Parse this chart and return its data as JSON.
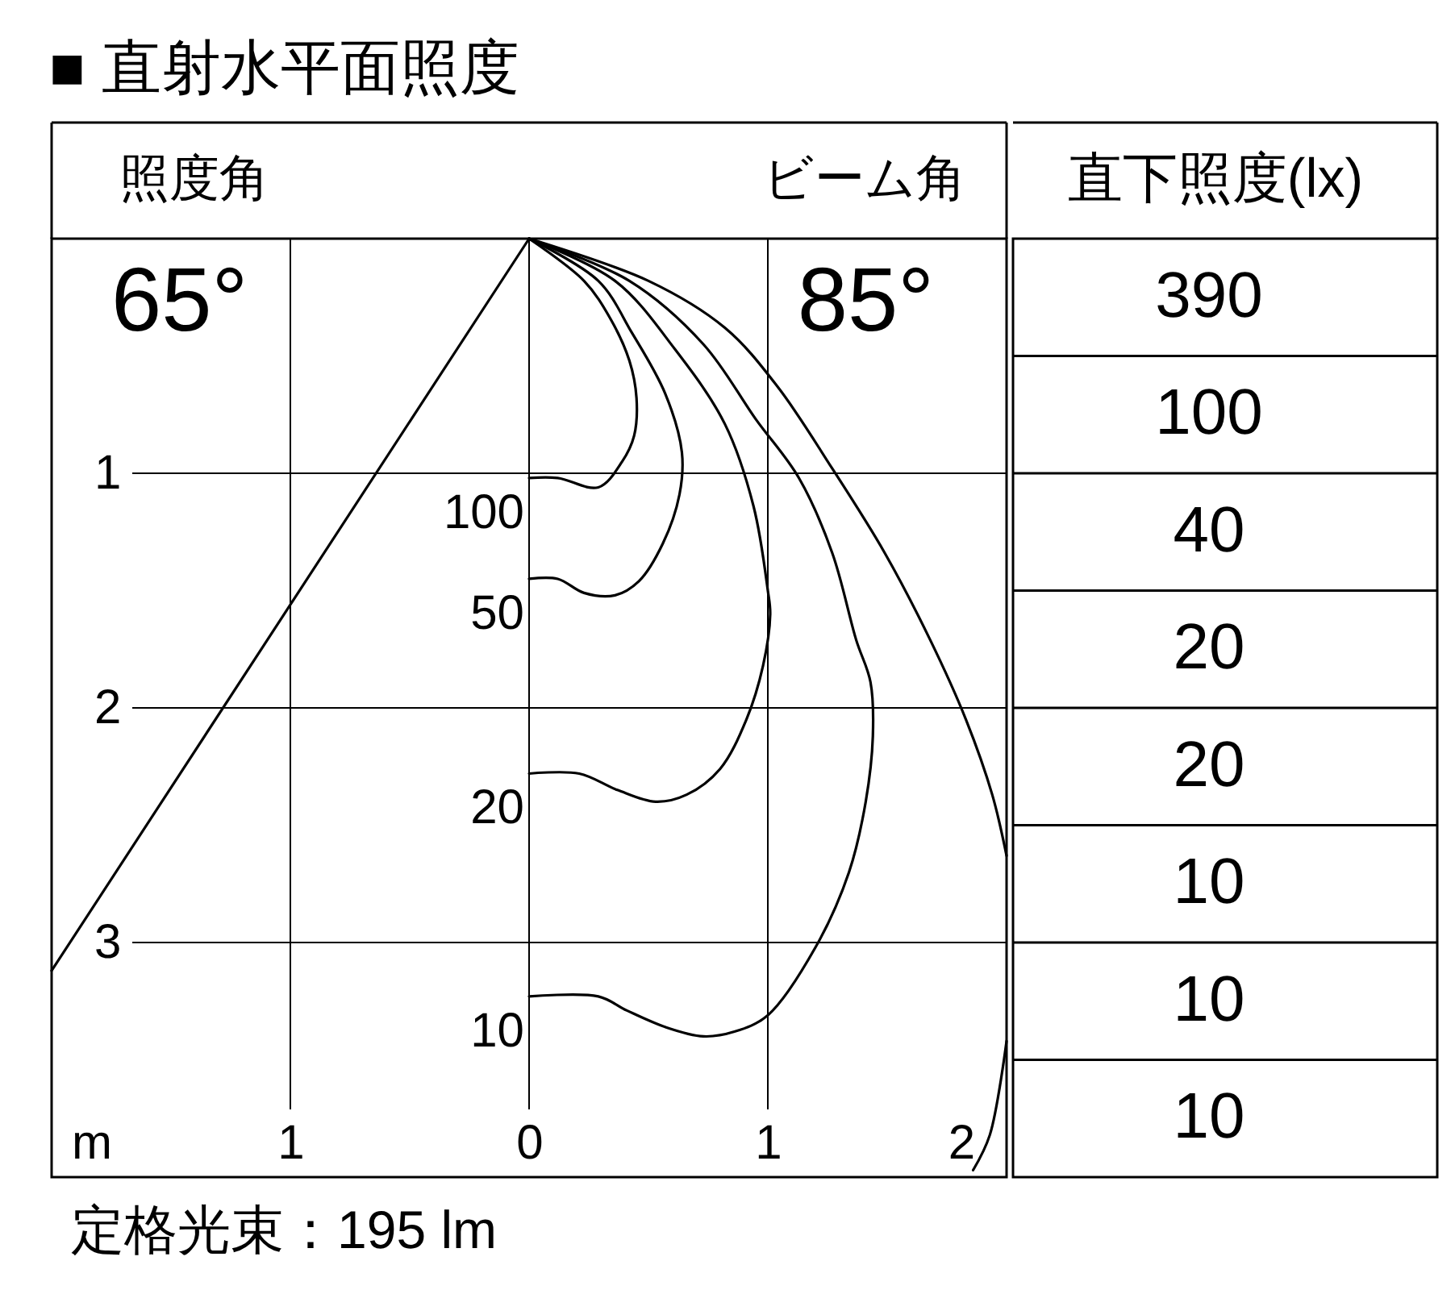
{
  "chart_data": [
    {
      "type": "line",
      "title": "■ 直射水平面照度",
      "xlabel": "m",
      "xlim": [
        -2,
        2
      ],
      "ylim": [
        4,
        0
      ],
      "xticks": [
        {
          "value": -1,
          "label": "1"
        },
        0,
        1,
        2
      ],
      "yticks": [
        1,
        2,
        3
      ],
      "grid": true,
      "line_style": "solid",
      "annotations": [
        "照度角",
        "65°",
        "ビーム角",
        "85°",
        "定格光束：195 lm"
      ],
      "series": [
        {
          "color": "#000000",
          "x": [
            0,
            -2.0
          ],
          "values": [
            0,
            3.12
          ]
        },
        {
          "name": "100",
          "color": "#000000",
          "x": [
            0,
            0.23,
            0.34,
            0.42,
            0.45,
            0.44,
            0.39,
            0.29,
            0.12,
            0
          ],
          "values": [
            0,
            0.18,
            0.34,
            0.52,
            0.68,
            0.84,
            0.95,
            1.06,
            1.02,
            1.02
          ]
        },
        {
          "name": "50",
          "color": "#000000",
          "x": [
            0,
            0.29,
            0.43,
            0.57,
            0.64,
            0.63,
            0.56,
            0.46,
            0.36,
            0.23,
            0.12,
            0
          ],
          "values": [
            0,
            0.18,
            0.4,
            0.66,
            0.91,
            1.09,
            1.3,
            1.46,
            1.52,
            1.51,
            1.45,
            1.45
          ]
        },
        {
          "name": "20",
          "color": "#000000",
          "x": [
            0,
            0.36,
            0.61,
            0.82,
            0.94,
            1.0,
            1.01,
            0.98,
            0.91,
            0.8,
            0.66,
            0.53,
            0.37,
            0.21,
            0
          ],
          "values": [
            0,
            0.18,
            0.47,
            0.79,
            1.14,
            1.5,
            1.6,
            1.82,
            2.05,
            2.26,
            2.37,
            2.4,
            2.35,
            2.28,
            2.28
          ]
        },
        {
          "name": "10",
          "color": "#000000",
          "x": [
            0,
            0.42,
            0.73,
            0.95,
            1.13,
            1.27,
            1.37,
            1.43,
            1.44,
            1.41,
            1.34,
            1.2,
            1.0,
            0.86,
            0.73,
            0.57,
            0.41,
            0.29,
            0
          ],
          "values": [
            0,
            0.18,
            0.45,
            0.77,
            1.02,
            1.34,
            1.71,
            1.89,
            2.12,
            2.4,
            2.7,
            3.02,
            3.31,
            3.38,
            3.4,
            3.36,
            3.29,
            3.23,
            3.23
          ]
        },
        {
          "color": "#000000",
          "x": [
            0,
            0.5,
            0.82,
            1.04,
            1.27,
            1.49,
            1.68,
            1.83,
            1.94,
            2.0,
            null,
            2.0,
            1.93,
            1.86
          ],
          "values": [
            0,
            0.18,
            0.38,
            0.63,
            0.98,
            1.34,
            1.71,
            2.05,
            2.37,
            2.63,
            null,
            3.42,
            3.82,
            3.97
          ]
        }
      ]
    },
    {
      "type": "other",
      "title": "直下照度(lx)",
      "annotations": [
        "390",
        "100",
        "40",
        "20",
        "20",
        "10",
        "10",
        "10"
      ]
    }
  ]
}
